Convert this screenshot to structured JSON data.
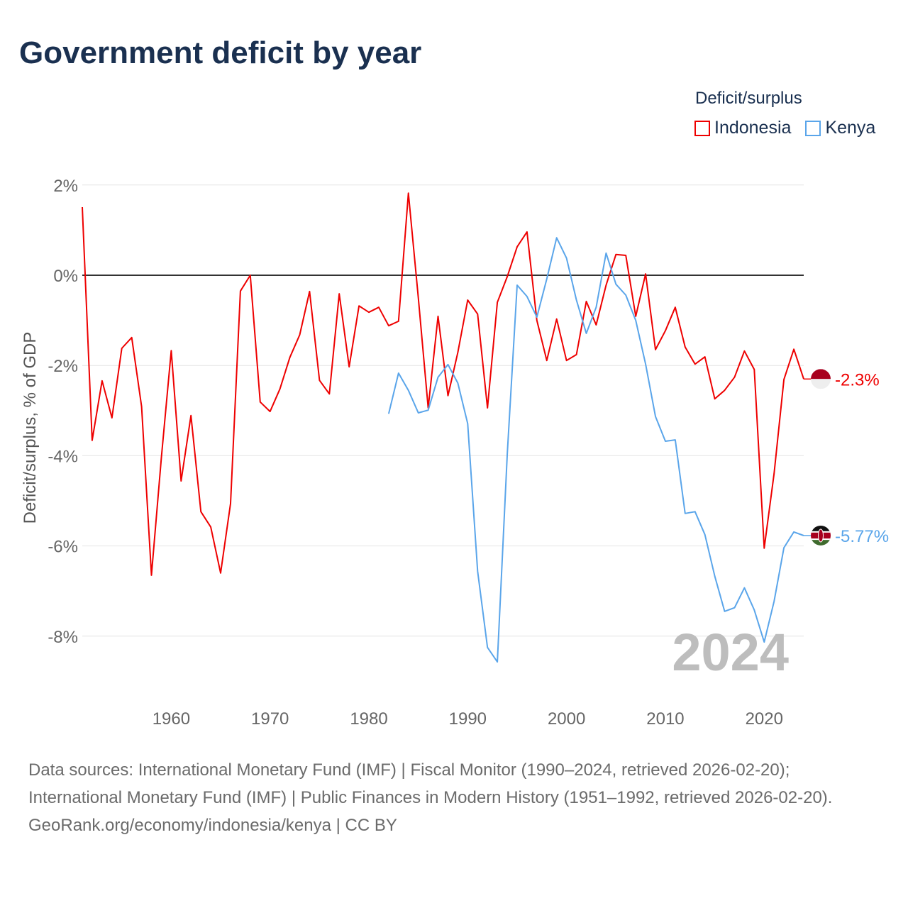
{
  "title": "Government deficit by year",
  "legend": {
    "title": "Deficit/surplus",
    "items": [
      {
        "label": "Indonesia",
        "color": "#ee0000"
      },
      {
        "label": "Kenya",
        "color": "#5aa5ea"
      }
    ]
  },
  "footer": {
    "sources": "Data sources: International Monetary Fund (IMF) | Fiscal Monitor (1990–2024, retrieved 2026-02-20); International Monetary Fund (IMF) | Public Finances in Modern History (1951–1992, retrieved 2026-02-20).",
    "credit": "GeoRank.org/economy/indonesia/kenya | CC BY"
  },
  "chart_data": {
    "type": "line",
    "title": "Government deficit by year",
    "ylabel": "Deficit/surplus, % of GDP",
    "xlabel": "",
    "xlim": [
      1951,
      2024
    ],
    "ylim": [
      -9.5,
      2
    ],
    "xticks": [
      1960,
      1970,
      1980,
      1990,
      2000,
      2010,
      2020
    ],
    "xtick_labels": [
      "1960",
      "1970",
      "1980",
      "1990",
      "2000",
      "2010",
      "2020"
    ],
    "yticks": [
      2,
      0,
      -2,
      -4,
      -6,
      -8
    ],
    "ytick_labels": [
      "2%",
      "0%",
      "-2%",
      "-4%",
      "-6%",
      "-8%"
    ],
    "watermark_year": "2024",
    "series": [
      {
        "name": "Indonesia",
        "color": "#ee0000",
        "start_year": 1951,
        "end_label": "-2.3%",
        "values": [
          1.51,
          -3.66,
          -2.34,
          -3.16,
          -1.62,
          -1.38,
          -2.91,
          -6.65,
          -4.04,
          -1.67,
          -4.56,
          -3.11,
          -5.24,
          -5.58,
          -6.6,
          -5.06,
          -0.35,
          0,
          -2.81,
          -3.02,
          -2.52,
          -1.82,
          -1.32,
          -0.36,
          -2.33,
          -2.63,
          -0.41,
          -2.03,
          -0.68,
          -0.82,
          -0.71,
          -1.12,
          -1.02,
          1.82,
          -0.5,
          -2.94,
          -0.91,
          -2.67,
          -1.71,
          -0.55,
          -0.86,
          -2.94,
          -0.6,
          -0.03,
          0.63,
          0.96,
          -1.0,
          -1.89,
          -0.97,
          -1.89,
          -1.76,
          -0.58,
          -1.1,
          -0.22,
          0.46,
          0.44,
          -0.91,
          0.03,
          -1.65,
          -1.23,
          -0.71,
          -1.59,
          -1.97,
          -1.81,
          -2.74,
          -2.55,
          -2.26,
          -1.68,
          -2.09,
          -6.05,
          -4.4,
          -2.31,
          -1.64,
          -2.3
        ]
      },
      {
        "name": "Kenya",
        "color": "#5aa5ea",
        "start_year": 1982,
        "end_label": "-5.77%",
        "values": [
          -3.07,
          -2.17,
          -2.55,
          -3.05,
          -2.99,
          -2.26,
          -1.98,
          -2.39,
          -3.29,
          -6.56,
          -8.25,
          -8.57,
          -3.96,
          -0.22,
          -0.47,
          -0.93,
          -0.08,
          0.83,
          0.38,
          -0.55,
          -1.29,
          -0.71,
          0.49,
          -0.2,
          -0.44,
          -1.0,
          -1.97,
          -3.13,
          -3.68,
          -3.65,
          -5.28,
          -5.24,
          -5.75,
          -6.67,
          -7.45,
          -7.37,
          -6.93,
          -7.42,
          -8.13,
          -7.23,
          -6.04,
          -5.69,
          -5.77
        ]
      }
    ]
  }
}
